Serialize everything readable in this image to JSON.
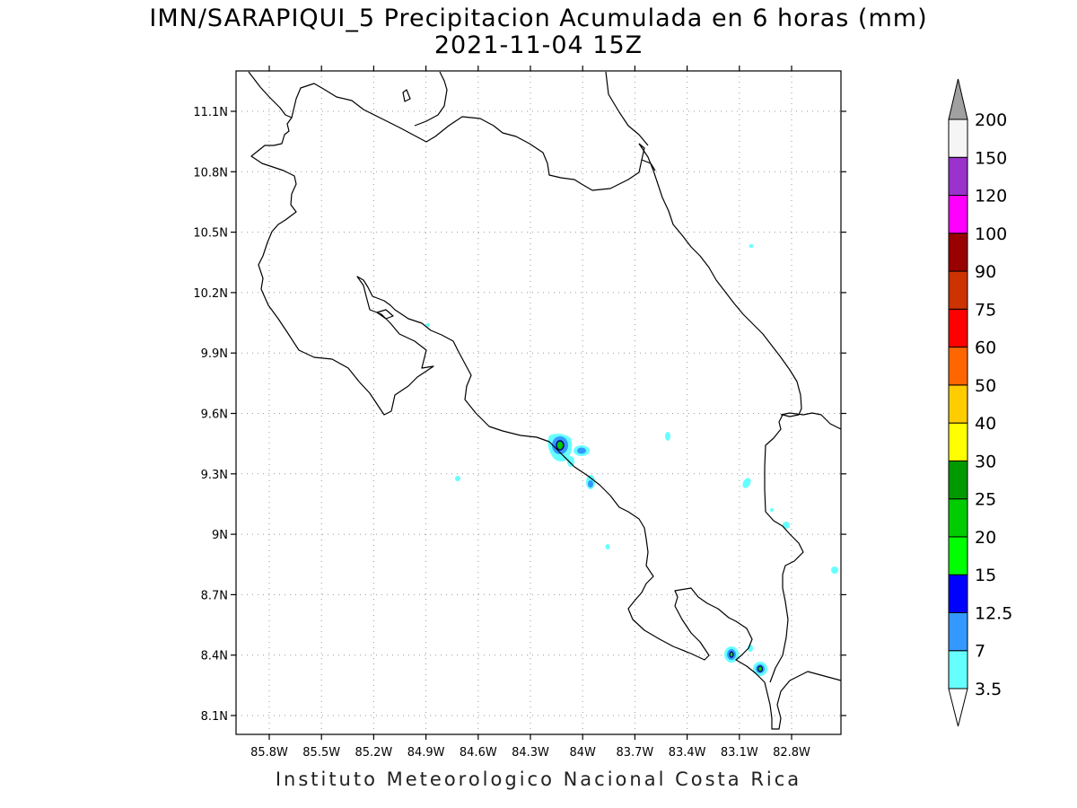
{
  "header": {
    "title": "IMN/SARAPIQUI_5 Precipitacion Acumulada en 6 horas (mm)",
    "subtitle": "2021-11-04 15Z"
  },
  "footer": {
    "credit": "Instituto Meteorologico Nacional Costa Rica"
  },
  "map": {
    "lat_ticks": [
      "11.1N",
      "10.8N",
      "10.5N",
      "10.2N",
      "9.9N",
      "9.6N",
      "9.3N",
      "9N",
      "8.7N",
      "8.4N",
      "8.1N"
    ],
    "lon_ticks": [
      "85.8W",
      "85.5W",
      "85.2W",
      "84.9W",
      "84.6W",
      "84.3W",
      "84W",
      "83.7W",
      "83.4W",
      "83.1W",
      "82.8W"
    ],
    "coastline_color": "#000000",
    "grid_style": "dotted"
  },
  "colorbar": {
    "labels": [
      "3.5",
      "7",
      "12.5",
      "15",
      "20",
      "25",
      "30",
      "40",
      "50",
      "60",
      "75",
      "90",
      "100",
      "120",
      "150",
      "200"
    ],
    "colors": [
      "#66ffff",
      "#3399ff",
      "#0000ff",
      "#00ff00",
      "#00cc00",
      "#009900",
      "#ffff00",
      "#ffcc00",
      "#ff6600",
      "#ff0000",
      "#cc3300",
      "#990000",
      "#ff00ff",
      "#9933cc",
      "#f5f5f5"
    ],
    "over_color": "#a0a0a0",
    "under_color": "#ffffff"
  }
}
